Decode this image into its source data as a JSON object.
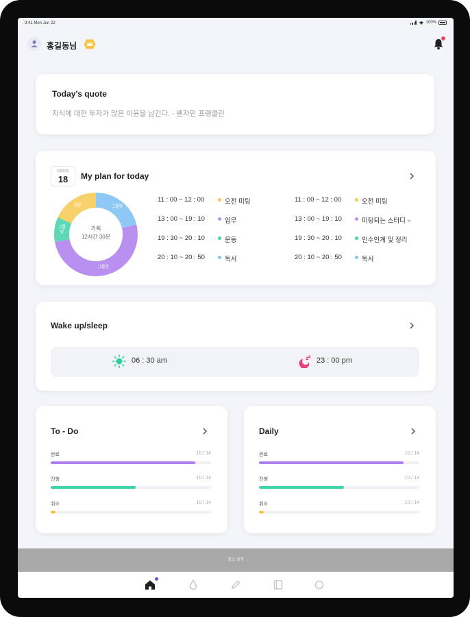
{
  "status_bar": {
    "time": "9:41 Mon Jun 22",
    "battery": "100%"
  },
  "header": {
    "username": "홍길동님",
    "badge_icon": "crown-badge-icon",
    "notification_icon": "bell-icon"
  },
  "quote": {
    "title": "Today's quote",
    "text": "지식에 대한 투자가 많은 이윤을 남긴다.   - 벤자민 프랭클린"
  },
  "plan": {
    "date_label": "6월22일",
    "date_day": "18",
    "title": "My plan for today",
    "donut_center_line1": "기획",
    "donut_center_line2": "12시간 30분",
    "segments": [
      {
        "label": "그룹명",
        "value": 2.2,
        "color": "#8dc9f4"
      },
      {
        "label": "그룹명",
        "value": 5.3,
        "color": "#b990ef"
      },
      {
        "label": "그룹\n명",
        "value": 1.0,
        "color": "#5ed8b4"
      },
      {
        "label": "개발",
        "value": 1.9,
        "color": "#f8d16a"
      }
    ],
    "schedule_left": [
      {
        "time": "11 : 00 ~ 12 : 00",
        "label": "오전 미팅",
        "color": "#f8c94a"
      },
      {
        "time": "13 : 00 ~ 19 : 10",
        "label": "업무",
        "color": "#b58ef0"
      },
      {
        "time": "19 : 30 ~ 20 : 10",
        "label": "운동",
        "color": "#3ed2a8"
      },
      {
        "time": "20 : 10 ~ 20 : 50",
        "label": "독서",
        "color": "#7ec5f3"
      }
    ],
    "schedule_right": [
      {
        "time": "11 : 00 ~ 12 : 00",
        "label": "오전 미팅",
        "color": "#f8c94a"
      },
      {
        "time": "13 : 00 ~ 19 : 10",
        "label": "미팅되는 스터디 ~",
        "color": "#b58ef0"
      },
      {
        "time": "19 : 30 ~ 20 : 10",
        "label": "인수인계 및 정리",
        "color": "#3ed2a8"
      },
      {
        "time": "20 : 10 ~ 20 : 50",
        "label": "독서",
        "color": "#7ec5f3"
      }
    ]
  },
  "wake": {
    "title": "Wake up/sleep",
    "wake_time": "06 : 30 am",
    "sleep_time": "23 : 00 pm",
    "wake_icon": "sun-icon",
    "sleep_icon": "moon-zzz-icon"
  },
  "todo": {
    "title": "To - Do",
    "rows": [
      {
        "label": "완료",
        "value": "10 / 14",
        "fraction": 0.9,
        "color": "#b27fee"
      },
      {
        "label": "진행",
        "value": "10 / 14",
        "fraction": 0.53,
        "color": "#3fd3aa"
      },
      {
        "label": "취소",
        "value": "10 / 14",
        "fraction": 0.03,
        "color": "#f5c542"
      }
    ]
  },
  "daily": {
    "title": "Daily",
    "rows": [
      {
        "label": "완료",
        "value": "10 / 14",
        "fraction": 0.9,
        "color": "#b27fee"
      },
      {
        "label": "진행",
        "value": "10 / 14",
        "fraction": 0.53,
        "color": "#3fd3aa"
      },
      {
        "label": "취소",
        "value": "10 / 14",
        "fraction": 0.03,
        "color": "#f5c542"
      }
    ]
  },
  "ad_banner": {
    "text": "광고 영역"
  },
  "tabbar": {
    "tabs": [
      {
        "icon": "home-icon",
        "active": true
      },
      {
        "icon": "drop-icon",
        "active": false
      },
      {
        "icon": "pencil-icon",
        "active": false
      },
      {
        "icon": "book-icon",
        "active": false
      },
      {
        "icon": "profile-icon",
        "active": false
      }
    ]
  }
}
